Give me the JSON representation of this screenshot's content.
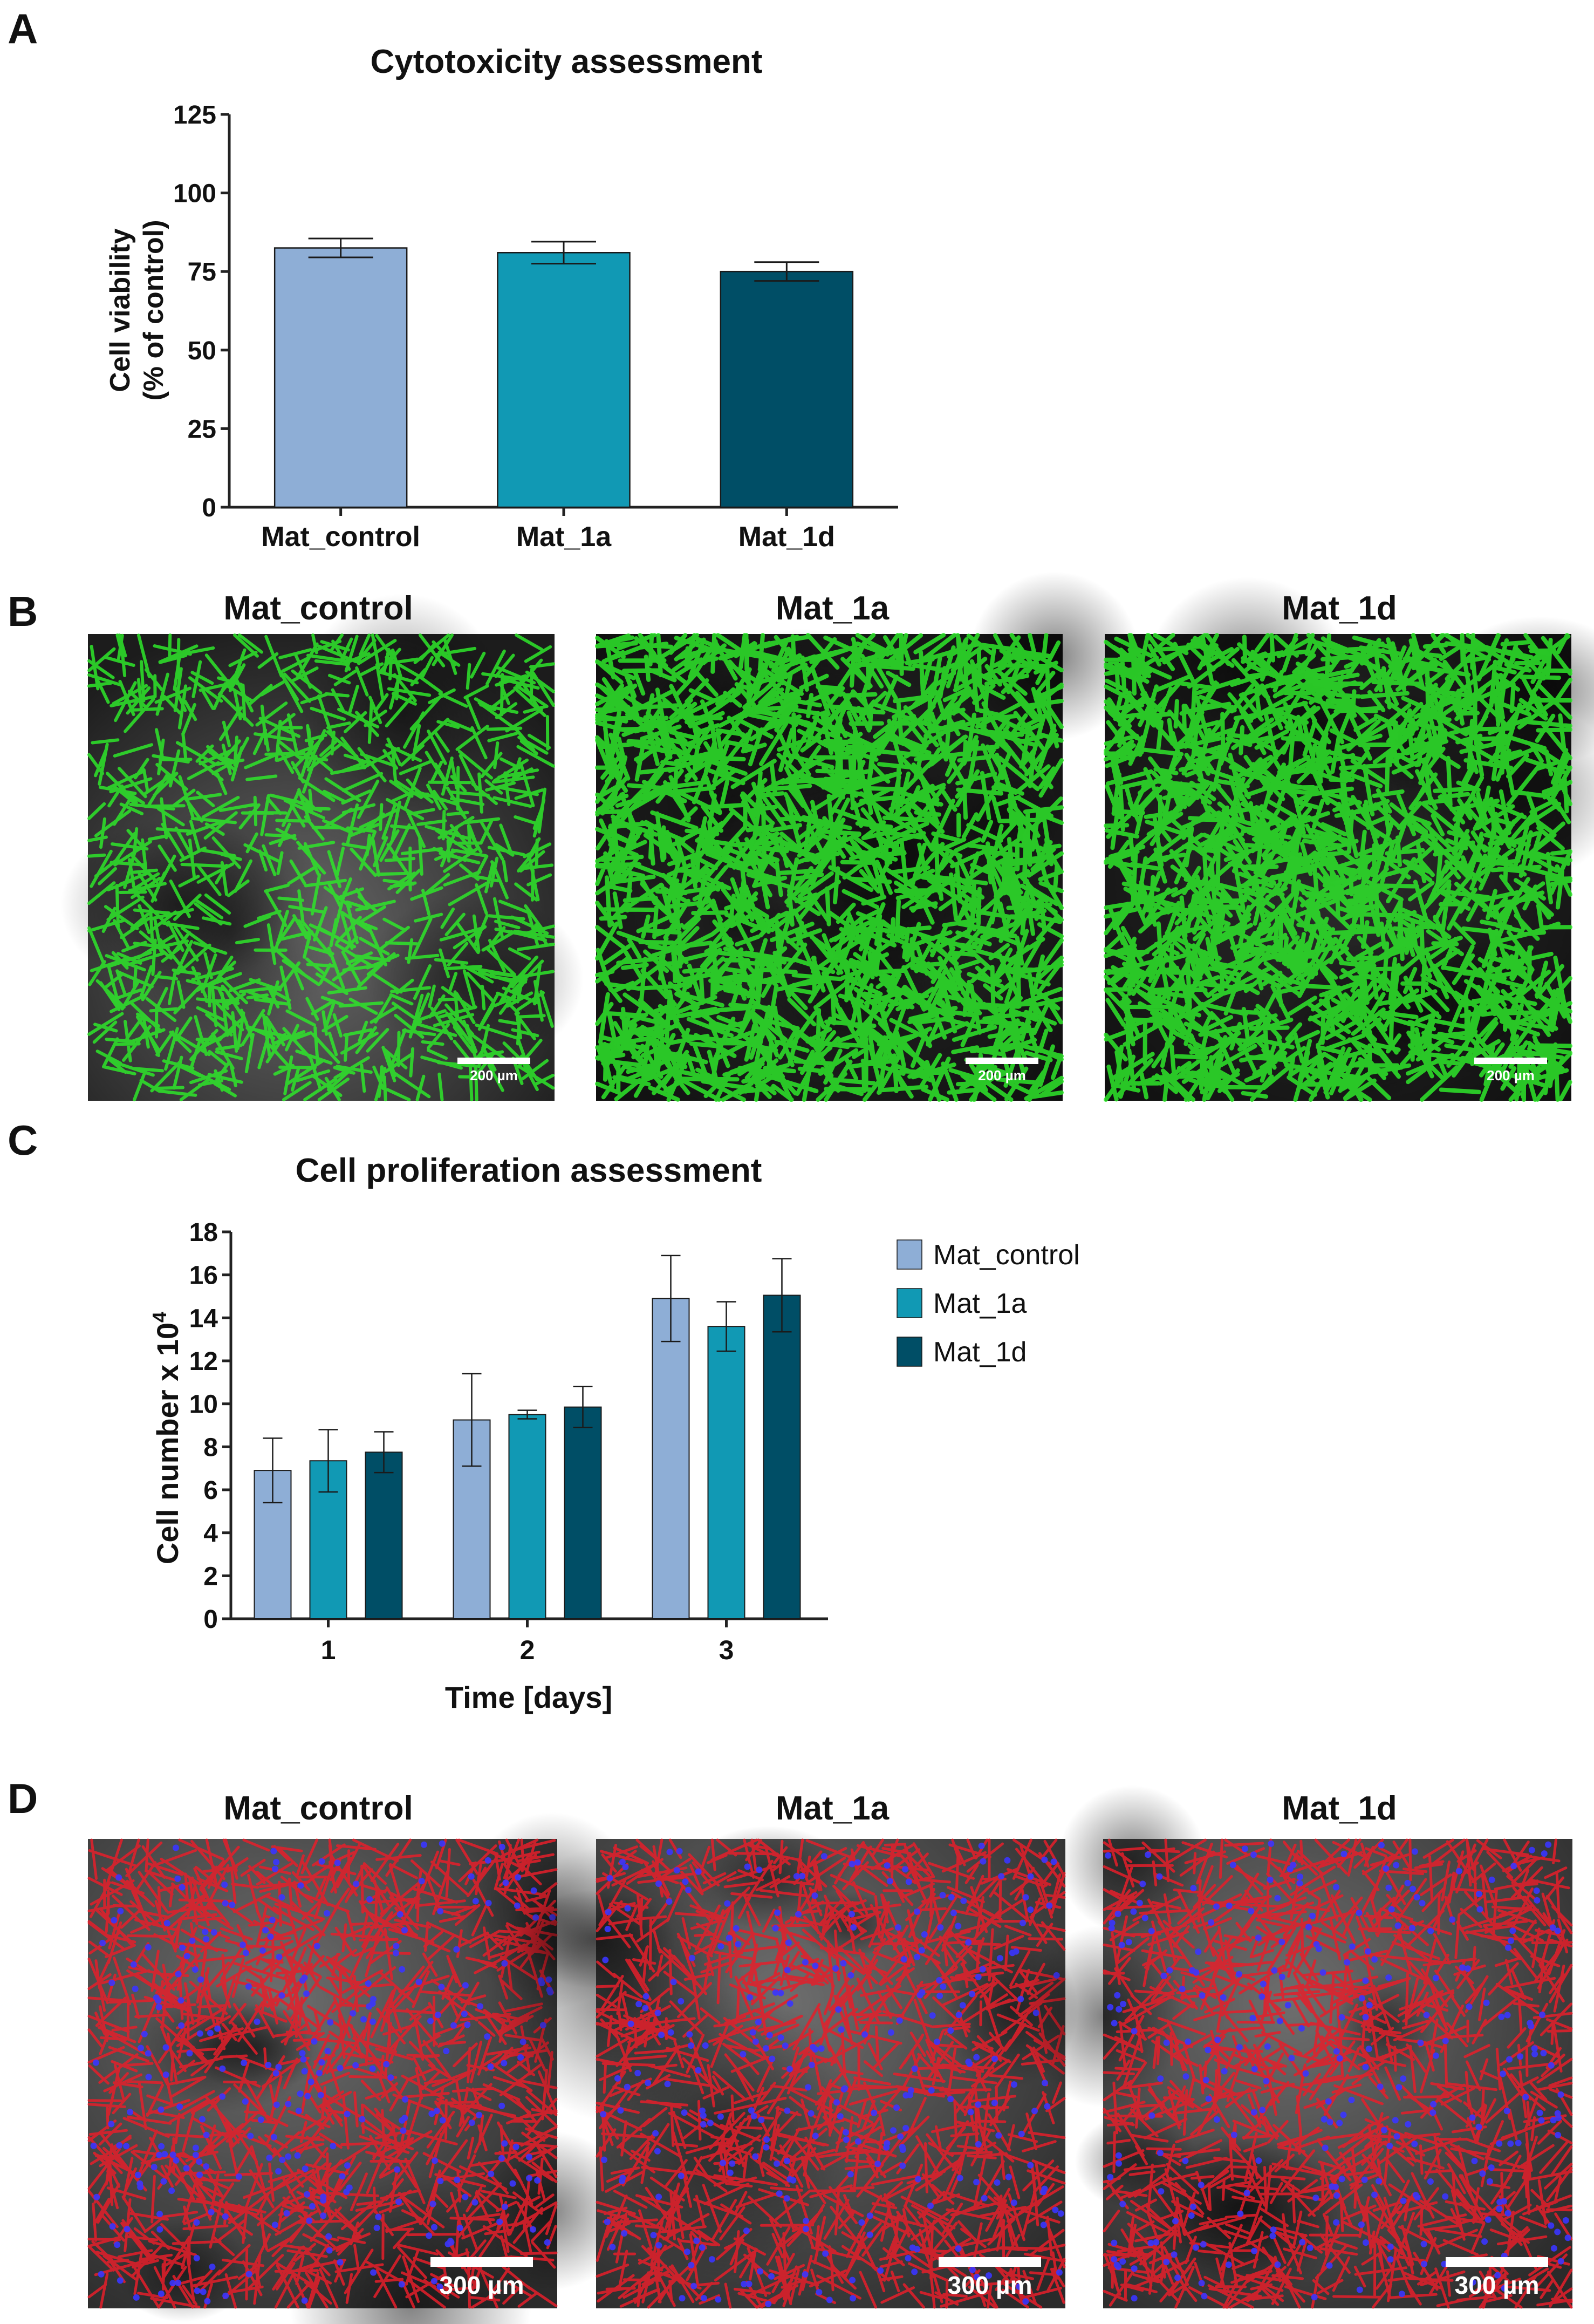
{
  "panel_letters": {
    "a": "A",
    "b": "B",
    "c": "C",
    "d": "D"
  },
  "colors": {
    "mat_control": "#8eaed6",
    "mat_1a": "#1199b4",
    "mat_1d": "#004e66",
    "axis": "#222222",
    "scale_bar": "#ffffff"
  },
  "chart_data": [
    {
      "type": "bar",
      "title": "Cytotoxicity assessment",
      "categories": [
        "Mat_control",
        "Mat_1a",
        "Mat_1d"
      ],
      "values": [
        82.5,
        81,
        75
      ],
      "errors": [
        3,
        3.5,
        3
      ],
      "ylabel_line1": "Cell viability",
      "ylabel_line2": "(% of control)",
      "xlabel": "",
      "ylim": [
        0,
        125
      ],
      "yticks": [
        "0",
        "25",
        "50",
        "75",
        "100",
        "125"
      ],
      "grid": false
    },
    {
      "type": "bar",
      "title": "Cell proliferation assessment",
      "categories": [
        "1",
        "2",
        "3"
      ],
      "series": [
        {
          "name": "Mat_control",
          "values": [
            6.9,
            9.25,
            14.9
          ],
          "errors": [
            1.5,
            2.15,
            2.0
          ]
        },
        {
          "name": "Mat_1a",
          "values": [
            7.35,
            9.5,
            13.6
          ],
          "errors": [
            1.45,
            0.2,
            1.15
          ]
        },
        {
          "name": "Mat_1d",
          "values": [
            7.75,
            9.85,
            15.05
          ],
          "errors": [
            0.95,
            0.95,
            1.7
          ]
        }
      ],
      "xlabel": "Time [days]",
      "ylabel": "Cell number x 10",
      "ylabel_sup": "4",
      "ylim": [
        0,
        18
      ],
      "yticks": [
        "0",
        "2",
        "4",
        "6",
        "8",
        "10",
        "12",
        "14",
        "16",
        "18"
      ],
      "legend_position": "right",
      "grid": false
    }
  ],
  "panel_b": {
    "images": [
      {
        "title": "Mat_control",
        "scale_label": "200 µm"
      },
      {
        "title": "Mat_1a",
        "scale_label": "200 µm"
      },
      {
        "title": "Mat_1d",
        "scale_label": "200 µm"
      }
    ]
  },
  "panel_d": {
    "images": [
      {
        "title": "Mat_control",
        "scale_label": "300 µm"
      },
      {
        "title": "Mat_1a",
        "scale_label": "300 µm"
      },
      {
        "title": "Mat_1d",
        "scale_label": "300 µm"
      }
    ]
  }
}
